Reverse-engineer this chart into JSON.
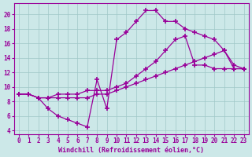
{
  "xlabel": "Windchill (Refroidissement éolien,°C)",
  "bg_color": "#cce8e8",
  "grid_color": "#a0c8c8",
  "line_color": "#990099",
  "x_hours": [
    0,
    1,
    2,
    3,
    4,
    5,
    6,
    7,
    8,
    9,
    10,
    11,
    12,
    13,
    14,
    15,
    16,
    17,
    18,
    19,
    20,
    21,
    22,
    23
  ],
  "line1_y": [
    9.0,
    9.0,
    8.5,
    7.0,
    6.0,
    5.5,
    5.0,
    4.5,
    11.0,
    7.0,
    16.5,
    17.5,
    19.0,
    20.5,
    20.5,
    19.0,
    19.0,
    18.0,
    17.5,
    17.0,
    16.5,
    15.0,
    13.0,
    12.5
  ],
  "line2_y": [
    9.0,
    9.0,
    8.5,
    8.5,
    9.0,
    9.0,
    9.0,
    9.5,
    9.5,
    9.5,
    10.0,
    10.5,
    11.5,
    12.5,
    13.5,
    15.0,
    16.5,
    17.0,
    13.0,
    13.0,
    12.5,
    12.5,
    12.5,
    12.5
  ],
  "line3_y": [
    9.0,
    9.0,
    8.5,
    8.5,
    8.5,
    8.5,
    8.5,
    8.5,
    9.0,
    9.0,
    9.5,
    10.0,
    10.5,
    11.0,
    11.5,
    12.0,
    12.5,
    13.0,
    13.5,
    14.0,
    14.5,
    15.0,
    12.5,
    12.5
  ],
  "ylim": [
    3.5,
    21.5
  ],
  "xlim": [
    -0.5,
    23.5
  ],
  "yticks": [
    4,
    6,
    8,
    10,
    12,
    14,
    16,
    18,
    20
  ],
  "xticks": [
    0,
    1,
    2,
    3,
    4,
    5,
    6,
    7,
    8,
    9,
    10,
    11,
    12,
    13,
    14,
    15,
    16,
    17,
    18,
    19,
    20,
    21,
    22,
    23
  ],
  "tick_fontsize": 5.5,
  "xlabel_fontsize": 6
}
